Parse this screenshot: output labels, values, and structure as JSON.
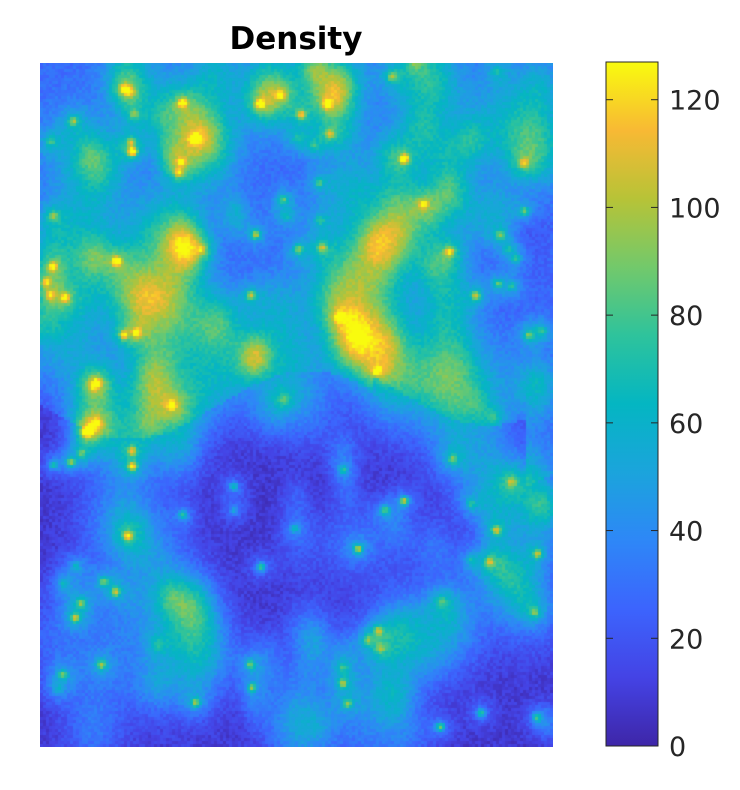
{
  "chart_data": {
    "type": "heatmap",
    "title": "Density",
    "xlabel": "",
    "ylabel": "",
    "colormap": "parula",
    "clim": [
      0,
      127
    ],
    "colorbar": {
      "location": "right",
      "ticks": [
        0,
        20,
        40,
        60,
        80,
        100,
        120
      ],
      "tick_labels": [
        "0",
        "20",
        "40",
        "60",
        "80",
        "100",
        "120"
      ]
    },
    "grid": false,
    "axes_ticks_visible": false,
    "description_of_field": {
      "background_level": 8,
      "dense_region_level": 28,
      "hotspots": [
        {
          "col": 0.18,
          "row": 0.13,
          "value": 110
        },
        {
          "col": 0.71,
          "row": 0.14,
          "value": 108
        },
        {
          "col": 0.15,
          "row": 0.29,
          "value": 100
        },
        {
          "col": 0.71,
          "row": 0.64,
          "value": 105
        },
        {
          "col": 0.18,
          "row": 0.59,
          "value": 95
        },
        {
          "col": 0.09,
          "row": 0.54,
          "value": 90
        },
        {
          "col": 0.43,
          "row": 0.06,
          "value": 90
        },
        {
          "col": 0.56,
          "row": 0.06,
          "value": 88
        },
        {
          "col": 0.85,
          "row": 0.34,
          "value": 85
        },
        {
          "col": 0.12,
          "row": 0.88,
          "value": 80
        },
        {
          "col": 0.86,
          "row": 0.95,
          "value": 80
        },
        {
          "col": 0.41,
          "row": 0.88,
          "value": 75
        },
        {
          "col": 0.27,
          "row": 0.16,
          "value": 70
        },
        {
          "col": 0.55,
          "row": 0.27,
          "value": 70
        },
        {
          "col": 0.02,
          "row": 0.34,
          "value": 70
        },
        {
          "col": 0.66,
          "row": 0.83,
          "value": 72
        },
        {
          "col": 0.08,
          "row": 0.79,
          "value": 68
        }
      ]
    }
  }
}
